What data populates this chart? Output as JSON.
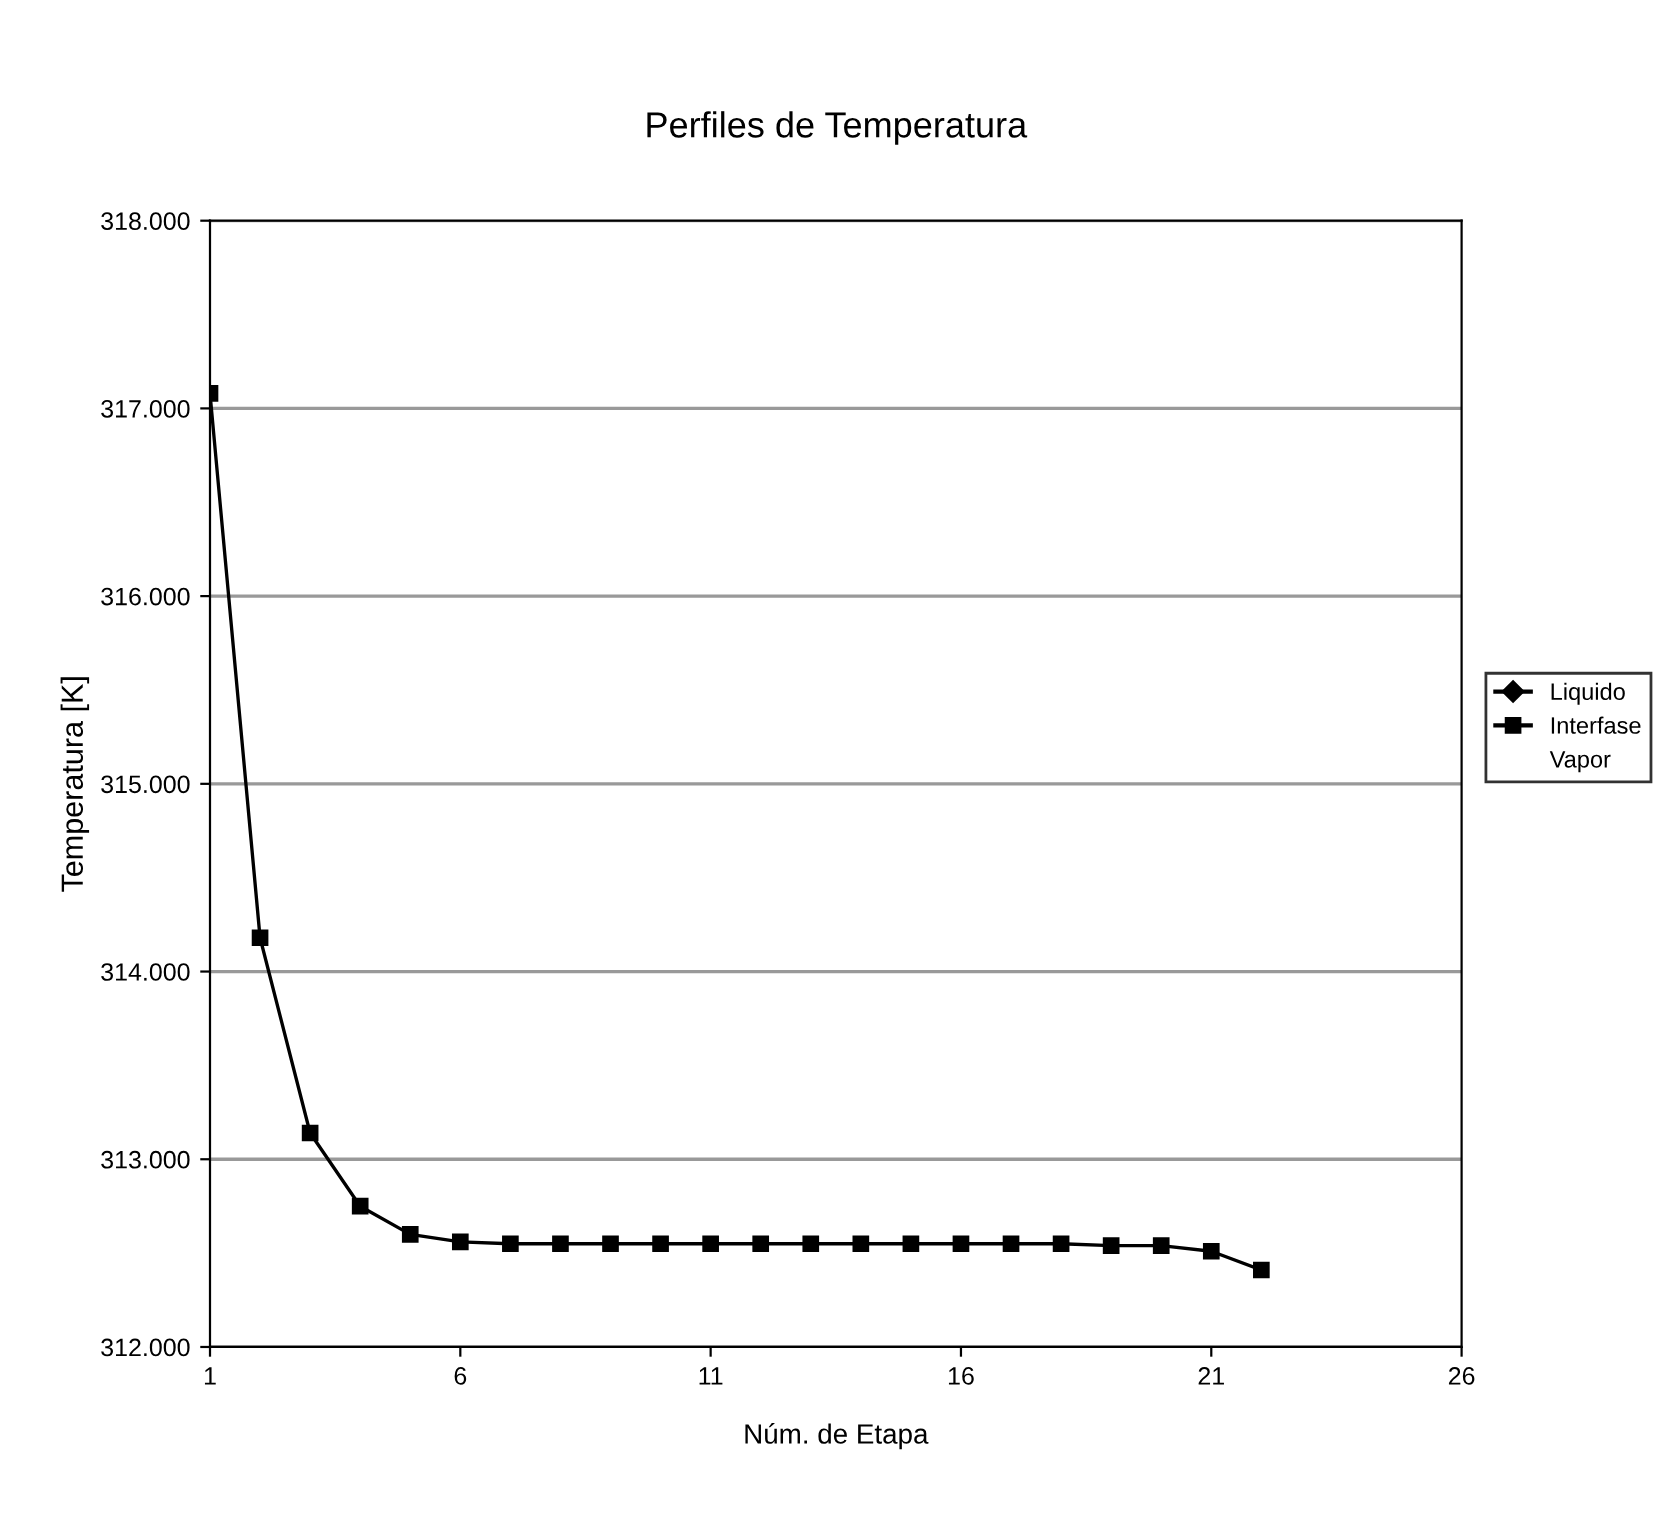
{
  "chart_data": {
    "type": "line",
    "title": "Perfiles de Temperatura",
    "xlabel": "Núm. de Etapa",
    "ylabel": "Temperatura [K]",
    "x": [
      1,
      2,
      3,
      4,
      5,
      6,
      7,
      8,
      9,
      10,
      11,
      12,
      13,
      14,
      15,
      16,
      17,
      18,
      19,
      20,
      21,
      22
    ],
    "series": [
      {
        "name": "Liquido",
        "color": "#000000",
        "marker": "diamond",
        "values": [
          null,
          null,
          null,
          null,
          null,
          null,
          null,
          null,
          null,
          null,
          null,
          null,
          null,
          null,
          null,
          null,
          null,
          null,
          null,
          null,
          null,
          null
        ]
      },
      {
        "name": "Interfase",
        "color": "#000000",
        "marker": "square",
        "values": [
          317.08,
          314.18,
          313.14,
          312.75,
          312.6,
          312.56,
          312.55,
          312.55,
          312.55,
          312.55,
          312.55,
          312.55,
          312.55,
          312.55,
          312.55,
          312.55,
          312.55,
          312.55,
          312.54,
          312.54,
          312.51,
          312.41
        ]
      },
      {
        "name": "Vapor",
        "marker": "none",
        "values": [
          null,
          null,
          null,
          null,
          null,
          null,
          null,
          null,
          null,
          null,
          null,
          null,
          null,
          null,
          null,
          null,
          null,
          null,
          null,
          null,
          null,
          null
        ]
      }
    ],
    "xlim": [
      1,
      26
    ],
    "xticks": [
      1,
      6,
      11,
      16,
      21,
      26
    ],
    "ylim": [
      312,
      318
    ],
    "yticks": [
      {
        "value": 312,
        "label": "312.000"
      },
      {
        "value": 313,
        "label": "313.000"
      },
      {
        "value": 314,
        "label": "314.000"
      },
      {
        "value": 315,
        "label": "315.000"
      },
      {
        "value": 316,
        "label": "316.000"
      },
      {
        "value": 317,
        "label": "317.000"
      },
      {
        "value": 318,
        "label": "318.000"
      }
    ],
    "grid": "y",
    "legend": "right",
    "line_style": "solid"
  }
}
